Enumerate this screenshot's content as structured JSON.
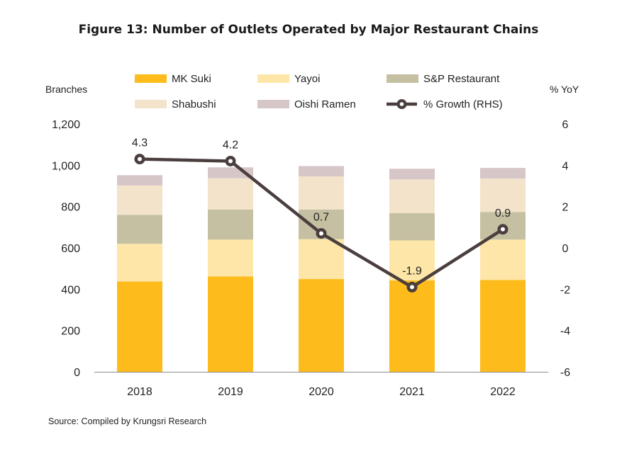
{
  "source": "Source: Compiled by Krungsri Research",
  "chart_data": {
    "type": "bar",
    "title": "Figure 13: Number of Outlets Operated by Major Restaurant Chains",
    "stacked": true,
    "ylabel": "Branches",
    "y2label": "% YoY",
    "categories": [
      "2018",
      "2019",
      "2020",
      "2021",
      "2022"
    ],
    "ylim": [
      0,
      1200
    ],
    "yticks": [
      0,
      200,
      400,
      600,
      800,
      1000,
      1200
    ],
    "y2lim": [
      -6,
      6
    ],
    "y2ticks": [
      -6,
      -4,
      -2,
      0,
      2,
      4,
      6
    ],
    "legend_position": "top",
    "grid": false,
    "series": [
      {
        "name": "MK Suki",
        "color": "#FDBC1B",
        "values": [
          437,
          462,
          449,
          443,
          445
        ]
      },
      {
        "name": "Yayoi",
        "color": "#FDE6A8",
        "values": [
          183,
          178,
          193,
          193,
          195
        ]
      },
      {
        "name": "S&P Restaurant",
        "color": "#C6C0A2",
        "values": [
          140,
          146,
          144,
          132,
          134
        ]
      },
      {
        "name": "Shabushi",
        "color": "#F3E3CB",
        "values": [
          142,
          151,
          160,
          163,
          162
        ]
      },
      {
        "name": "Oishi Ramen",
        "color": "#D7C6C8",
        "values": [
          50,
          53,
          50,
          52,
          51
        ]
      }
    ],
    "line_series": {
      "name": "% Growth (RHS)",
      "axis": "right",
      "color": "#4A3F3E",
      "values": [
        4.3,
        4.2,
        0.7,
        -1.9,
        0.9
      ],
      "labels": [
        "4.3",
        "4.2",
        "0.7",
        "-1.9",
        "0.9"
      ]
    }
  }
}
